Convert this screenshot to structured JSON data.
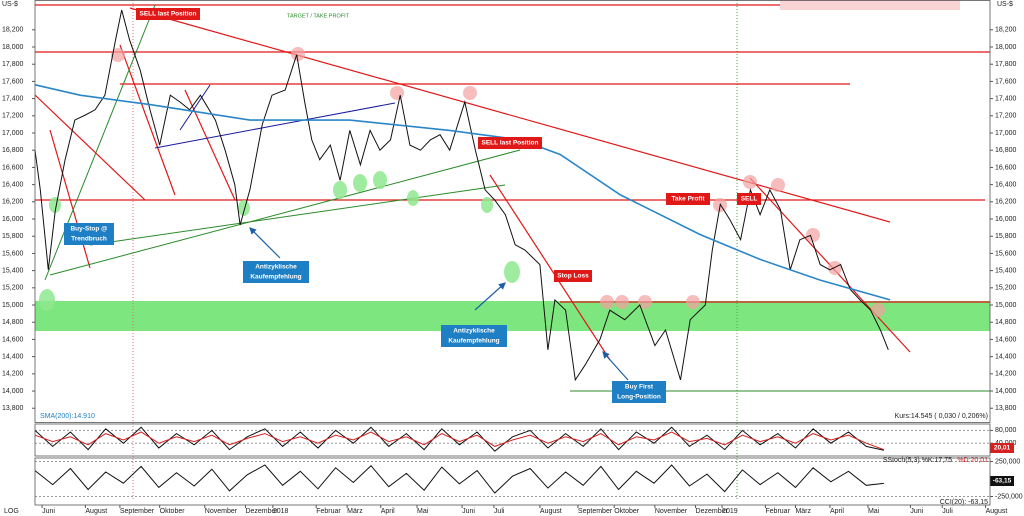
{
  "chart_data": [
    {
      "type": "line",
      "unit": "US-$",
      "ylim": [
        13640,
        18500
      ],
      "yticks": [
        {
          "value": 13800,
          "label": "13,800"
        },
        {
          "value": 14000,
          "label": "14,000"
        },
        {
          "value": 14200,
          "label": "14,200"
        },
        {
          "value": 14400,
          "label": "14,400"
        },
        {
          "value": 14600,
          "label": "14,600"
        },
        {
          "value": 14800,
          "label": "14,800"
        },
        {
          "value": 15000,
          "label": "15,000"
        },
        {
          "value": 15200,
          "label": "15,200"
        },
        {
          "value": 15400,
          "label": "15,400"
        },
        {
          "value": 15600,
          "label": "15,600"
        },
        {
          "value": 15800,
          "label": "15,800"
        },
        {
          "value": 16000,
          "label": "16,000"
        },
        {
          "value": 16200,
          "label": "16,200"
        },
        {
          "value": 16400,
          "label": "16,400"
        },
        {
          "value": 16600,
          "label": "16,600"
        },
        {
          "value": 16800,
          "label": "16,800"
        },
        {
          "value": 17000,
          "label": "17,000"
        },
        {
          "value": 17200,
          "label": "17,200"
        },
        {
          "value": 17400,
          "label": "17,400"
        },
        {
          "value": 17600,
          "label": "17,600"
        },
        {
          "value": 17800,
          "label": "17,800"
        },
        {
          "value": 18000,
          "label": "18,000"
        },
        {
          "value": 18200,
          "label": "18,200"
        }
      ],
      "xlim": [
        0,
        108
      ],
      "xticks": [
        {
          "value": 0.8,
          "label": "Juni"
        },
        {
          "value": 5.7,
          "label": "August"
        },
        {
          "value": 9.6,
          "label": "September"
        },
        {
          "value": 14.1,
          "label": "Oktober"
        },
        {
          "value": 19.2,
          "label": "November"
        },
        {
          "value": 23.8,
          "label": "Dezember"
        },
        {
          "value": 26.9,
          "label": "2018"
        },
        {
          "value": 31.8,
          "label": "Februar"
        },
        {
          "value": 35.3,
          "label": "März"
        },
        {
          "value": 39.1,
          "label": "April"
        },
        {
          "value": 43.2,
          "label": "Mai"
        },
        {
          "value": 48.3,
          "label": "Juni"
        },
        {
          "value": 51.9,
          "label": "Juli"
        },
        {
          "value": 57.1,
          "label": "August"
        },
        {
          "value": 61.4,
          "label": "September"
        },
        {
          "value": 65.5,
          "label": "Oktober"
        },
        {
          "value": 70.1,
          "label": "November"
        },
        {
          "value": 74.7,
          "label": "Dezember"
        },
        {
          "value": 77.7,
          "label": "2019"
        },
        {
          "value": 82.6,
          "label": "Februar"
        },
        {
          "value": 86.0,
          "label": "März"
        },
        {
          "value": 89.9,
          "label": "April"
        },
        {
          "value": 94.2,
          "label": "Mai"
        },
        {
          "value": 99.0,
          "label": "Juni"
        },
        {
          "value": 102.6,
          "label": "Juli"
        },
        {
          "value": 107.5,
          "label": "August"
        }
      ],
      "series": [
        {
          "color": "#111111",
          "x": [
            0,
            0.6,
            1.5,
            2.3,
            3.4,
            4.5,
            5.7,
            6.8,
            7.9,
            9.1,
            9.8,
            10.7,
            11.9,
            13,
            14.1,
            15.3,
            16.4,
            17.5,
            18.7,
            20.4,
            21.5,
            22.6,
            23.2,
            24.3,
            25.7,
            26.8,
            28.3,
            29.6,
            30.5,
            31.3,
            32.2,
            33.4,
            34.5,
            35.6,
            36.8,
            37.9,
            39,
            40.2,
            41.3,
            42.4,
            43.6,
            44.7,
            45.8,
            46.9,
            48.6,
            49.8,
            50.9,
            52,
            53.2,
            54.3,
            55.4,
            57.1,
            58,
            58.8,
            60,
            61.1,
            62.2,
            63.9,
            65,
            66.7,
            68.4,
            70.1,
            71.3,
            73,
            74.1,
            75.8,
            76.6,
            77.5,
            78.6,
            79.8,
            80.9,
            82,
            83.1,
            84.3,
            85.4,
            86.5,
            87.7,
            88.8,
            89.9,
            91.1,
            92.2,
            93.3,
            94.5,
            95.6,
            96.5
          ],
          "values": [
            16800,
            16340,
            15410,
            16100,
            16690,
            17150,
            17210,
            17270,
            17440,
            18080,
            18430,
            18080,
            17730,
            17270,
            16860,
            17440,
            17360,
            17270,
            17440,
            17150,
            16800,
            16400,
            15930,
            16340,
            17100,
            17440,
            17500,
            17910,
            17360,
            16920,
            16690,
            16860,
            16450,
            17030,
            16630,
            17030,
            16800,
            16920,
            17440,
            16860,
            16800,
            16920,
            16980,
            16800,
            17360,
            16800,
            16340,
            16220,
            16050,
            15700,
            15640,
            15470,
            14480,
            15060,
            14940,
            14130,
            14300,
            14600,
            14940,
            14830,
            15000,
            14530,
            14710,
            14130,
            14830,
            15000,
            15640,
            16170,
            15990,
            15760,
            16340,
            16050,
            16340,
            16110,
            15410,
            15760,
            15810,
            15470,
            15410,
            15470,
            15180,
            15060,
            14940,
            14710,
            14480
          ]
        },
        {
          "color": "#2a86c8",
          "x": [
            0,
            5.1,
            13,
            24.3,
            35.6,
            46.9,
            54.9,
            59.4,
            66.2,
            75.2,
            82,
            88.8,
            96.7
          ],
          "values": [
            17560,
            17440,
            17330,
            17150,
            17150,
            17030,
            16920,
            16750,
            16280,
            15820,
            15530,
            15290,
            15060
          ]
        }
      ],
      "annotations": [
        "SELL last Position",
        "TARGET / TAKE PROFIT",
        "SELL last Position",
        "Take Profit",
        "SELL",
        "Stop Loss",
        "Buy-Stop @",
        "Trendbruch",
        "Antizyklische",
        "Kaufempfehlung",
        "Antizyklische",
        "Kaufempfehlung",
        "Buy First",
        "Long-Position"
      ],
      "sma_label": "SMA(200):14.910",
      "price_label": "Kurs:14.545 ( 0,030 / 0,206%)",
      "scale_label": "LOG"
    },
    {
      "type": "line",
      "ylim": [
        0,
        100
      ],
      "yticks": [
        {
          "value": 80,
          "label": "80,000"
        },
        {
          "value": 40,
          "label": "40,000"
        }
      ],
      "label": "SStoch(5,3) %K:17,75",
      "label2": "%D:20,01",
      "value_box": "20,01",
      "series": [
        {
          "color": "#111111",
          "x": [
            0,
            2,
            4,
            6,
            8,
            10,
            12,
            14,
            16,
            18,
            20,
            22,
            24,
            26,
            28,
            30,
            32,
            34,
            36,
            38,
            40,
            42,
            44,
            46,
            48,
            50,
            52,
            54,
            56,
            58,
            60,
            62,
            64,
            66,
            68,
            70,
            72,
            74,
            76,
            78,
            80,
            82,
            84,
            86,
            88,
            90,
            92,
            94,
            96
          ],
          "values": [
            80,
            30,
            75,
            20,
            85,
            40,
            90,
            25,
            70,
            35,
            80,
            20,
            60,
            85,
            30,
            75,
            25,
            80,
            40,
            90,
            30,
            70,
            20,
            85,
            35,
            75,
            15,
            60,
            80,
            25,
            70,
            30,
            85,
            20,
            75,
            40,
            90,
            30,
            65,
            20,
            80,
            35,
            70,
            25,
            85,
            40,
            75,
            30,
            17.75
          ]
        },
        {
          "color": "#d62020",
          "x": [
            0,
            2,
            4,
            6,
            8,
            10,
            12,
            14,
            16,
            18,
            20,
            22,
            24,
            26,
            28,
            30,
            32,
            34,
            36,
            38,
            40,
            42,
            44,
            46,
            48,
            50,
            52,
            54,
            56,
            58,
            60,
            62,
            64,
            66,
            68,
            70,
            72,
            74,
            76,
            78,
            80,
            82,
            84,
            86,
            88,
            90,
            92,
            94,
            96
          ],
          "values": [
            65,
            45,
            60,
            35,
            70,
            50,
            75,
            40,
            60,
            45,
            65,
            35,
            55,
            70,
            45,
            60,
            40,
            65,
            50,
            75,
            45,
            60,
            35,
            70,
            45,
            65,
            30,
            50,
            65,
            40,
            60,
            45,
            70,
            35,
            60,
            50,
            75,
            45,
            55,
            35,
            65,
            45,
            60,
            40,
            70,
            50,
            65,
            40,
            20.01
          ]
        }
      ]
    },
    {
      "type": "line",
      "ylim": [
        -300,
        300
      ],
      "yticks": [
        {
          "value": 250,
          "label": "250,000"
        },
        {
          "value": -250,
          "label": "-250,000"
        }
      ],
      "label": "CCI(20): -63,15",
      "value_box": "-63,15",
      "series": [
        {
          "color": "#111111",
          "x": [
            0,
            2,
            4,
            6,
            8,
            10,
            12,
            14,
            16,
            18,
            20,
            22,
            24,
            26,
            28,
            30,
            32,
            34,
            36,
            38,
            40,
            42,
            44,
            46,
            48,
            50,
            52,
            54,
            56,
            58,
            60,
            62,
            64,
            66,
            68,
            70,
            72,
            74,
            76,
            78,
            80,
            82,
            84,
            86,
            88,
            90,
            92,
            94,
            96
          ],
          "values": [
            120,
            -80,
            150,
            -150,
            100,
            -60,
            180,
            -120,
            90,
            -100,
            140,
            -170,
            60,
            200,
            -90,
            110,
            -140,
            160,
            -50,
            190,
            -110,
            80,
            -160,
            170,
            -70,
            120,
            -200,
            40,
            150,
            -130,
            100,
            -90,
            180,
            -150,
            110,
            -60,
            200,
            -100,
            70,
            -180,
            130,
            -80,
            90,
            -120,
            160,
            -40,
            110,
            -90,
            -63.15
          ]
        }
      ]
    }
  ]
}
